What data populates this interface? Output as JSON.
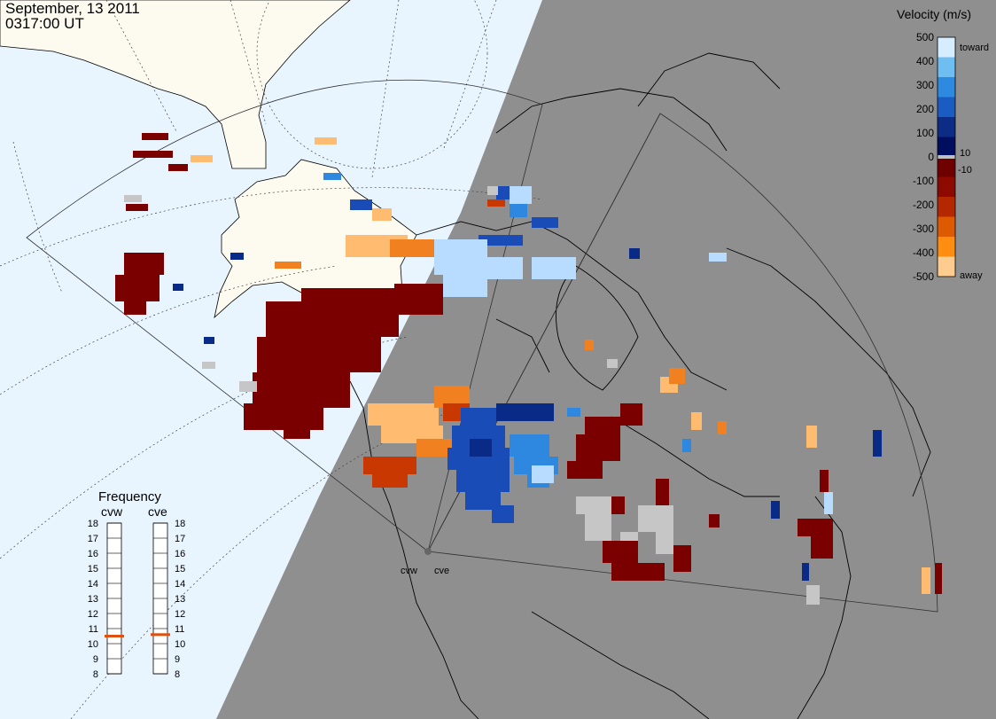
{
  "header": {
    "date": "September, 13 2011",
    "time": "0317:00 UT"
  },
  "legend": {
    "title": "Velocity (m/s)",
    "ticks": [
      "500",
      "400",
      "300",
      "200",
      "100",
      "0",
      "-100",
      "-200",
      "-300",
      "-400",
      "-500"
    ],
    "near_zero_labels": [
      "10",
      "-10"
    ],
    "toward_label": "toward",
    "away_label": "away",
    "colors": [
      "#d6ecff",
      "#6fbef2",
      "#2e8ae0",
      "#1a5cc2",
      "#0c2c86",
      "#000e60",
      "#6e0000",
      "#8c0a00",
      "#b42800",
      "#de5a00",
      "#ff8e10",
      "#ffcc90"
    ],
    "ground_scatter_color": "#c0c0c0"
  },
  "frequency": {
    "title": "Frequency",
    "radars": [
      "cvw",
      "cve"
    ],
    "scale": [
      "18",
      "17",
      "16",
      "15",
      "14",
      "13",
      "12",
      "11",
      "10",
      "9",
      "8"
    ],
    "selected_mhz": [
      10.5,
      10.6
    ],
    "marker_color": "#e05010"
  },
  "radars": {
    "labels": [
      "cvw",
      "cve"
    ]
  },
  "colors": {
    "night": "#8f8f8f",
    "ocean_day": "#e8f5ff",
    "land_day": "#fdfbf0",
    "coast": "#000000",
    "fov": "#303030"
  }
}
